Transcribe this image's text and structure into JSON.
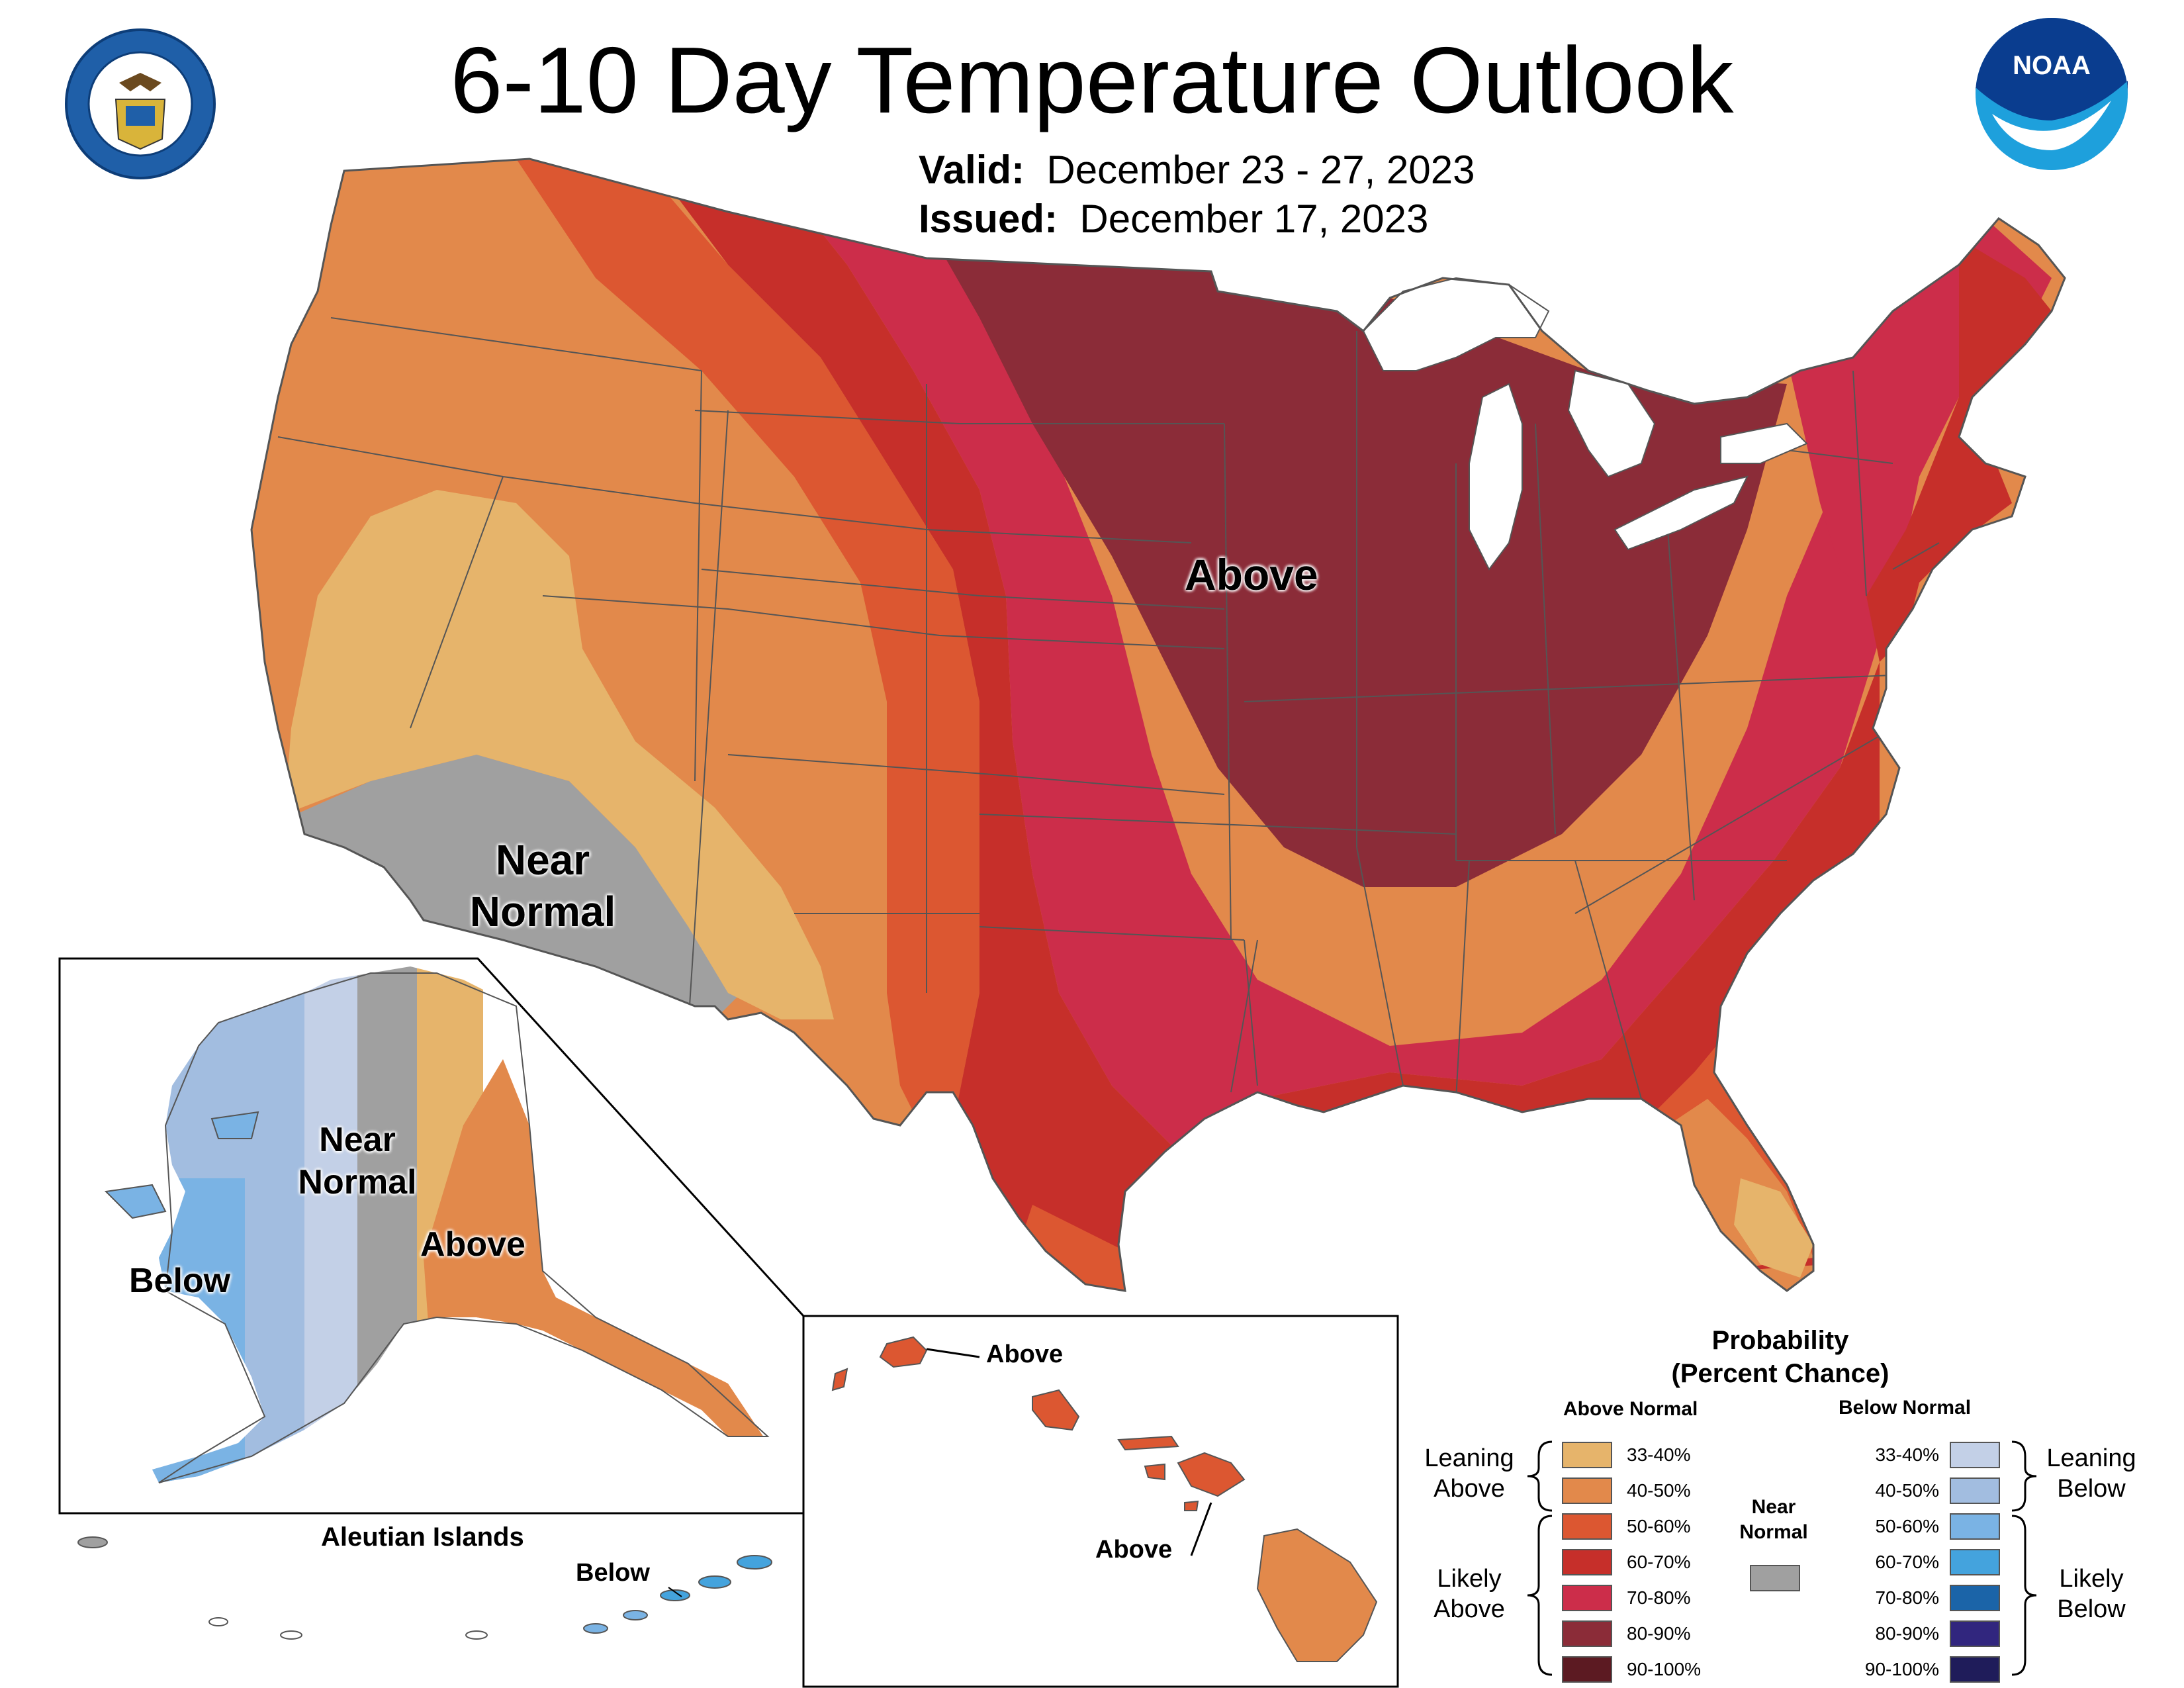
{
  "header": {
    "title": "6-10 Day Temperature Outlook",
    "valid_label": "Valid:",
    "valid_value": "December 23 - 27, 2023",
    "issued_label": "Issued:",
    "issued_value": "December 17, 2023"
  },
  "logos": {
    "commerce_text": "DEPARTMENT OF COMMERCE · UNITED STATES OF AMERICA",
    "noaa_text": "NOAA"
  },
  "map_labels": {
    "conus_above": "Above",
    "conus_near_1": "Near",
    "conus_near_2": "Normal",
    "alaska_near_1": "Near",
    "alaska_near_2": "Normal",
    "alaska_above": "Above",
    "alaska_below": "Below",
    "aleutian_title": "Aleutian Islands",
    "aleutian_below": "Below",
    "hawaii_above_1": "Above",
    "hawaii_above_2": "Above"
  },
  "legend": {
    "title_1": "Probability",
    "title_2": "(Percent Chance)",
    "above_header": "Above Normal",
    "below_header": "Below Normal",
    "near_1": "Near",
    "near_2": "Normal",
    "leaning_above_1": "Leaning",
    "leaning_above_2": "Above",
    "likely_above_1": "Likely",
    "likely_above_2": "Above",
    "leaning_below_1": "Leaning",
    "leaning_below_2": "Below",
    "likely_below_1": "Likely",
    "likely_below_2": "Below",
    "above_rows": [
      {
        "label": "33-40%",
        "color": "#e6b46b"
      },
      {
        "label": "40-50%",
        "color": "#e2894b"
      },
      {
        "label": "50-60%",
        "color": "#dc5731"
      },
      {
        "label": "60-70%",
        "color": "#c62f2a"
      },
      {
        "label": "70-80%",
        "color": "#cc2d4a"
      },
      {
        "label": "80-90%",
        "color": "#8b2c38"
      },
      {
        "label": "90-100%",
        "color": "#5c1a22"
      }
    ],
    "below_rows": [
      {
        "label": "33-40%",
        "color": "#c3d0e7"
      },
      {
        "label": "40-50%",
        "color": "#a2bde0"
      },
      {
        "label": "50-60%",
        "color": "#7ab3e4"
      },
      {
        "label": "60-70%",
        "color": "#44a3dd"
      },
      {
        "label": "70-80%",
        "color": "#1b64a8"
      },
      {
        "label": "80-90%",
        "color": "#31267e"
      },
      {
        "label": "90-100%",
        "color": "#1f1c5a"
      }
    ],
    "near_color": "#a0a0a0"
  },
  "colors": {
    "lean_above": "#e6b46b",
    "above_40": "#e2894b",
    "above_50": "#dc5731",
    "above_60": "#c62f2a",
    "above_70": "#cc2d4a",
    "above_80": "#8b2c38",
    "near": "#a0a0a0",
    "lean_below": "#c3d0e7",
    "below_40": "#a2bde0",
    "below_50": "#7ab3e4",
    "below_60": "#44a3dd",
    "lakes": "#ffffff",
    "border": "#555555"
  }
}
